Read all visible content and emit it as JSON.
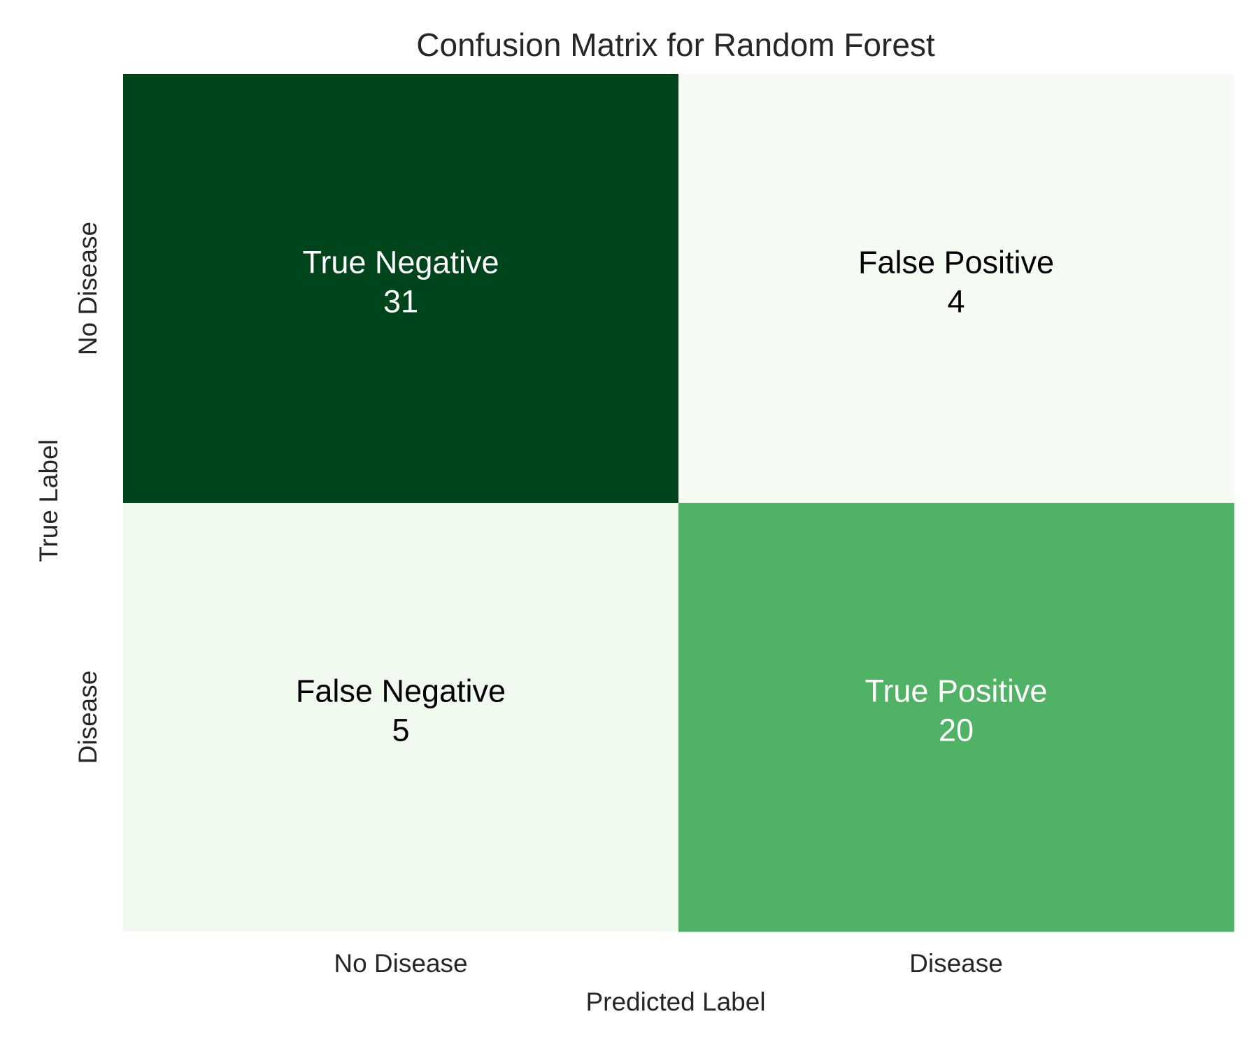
{
  "chart_data": {
    "type": "heatmap",
    "title": "Confusion Matrix for Random Forest",
    "xlabel": "Predicted Label",
    "ylabel": "True Label",
    "x_categories": [
      "No Disease",
      "Disease"
    ],
    "y_categories": [
      "No Disease",
      "Disease"
    ],
    "cells": [
      {
        "row": 0,
        "col": 0,
        "name": "True Negative",
        "value": 31,
        "color": "#00441b",
        "text_color": "#ffffff"
      },
      {
        "row": 0,
        "col": 1,
        "name": "False Positive",
        "value": 4,
        "color": "#f5fbf3",
        "text_color": "#000000"
      },
      {
        "row": 1,
        "col": 0,
        "name": "False Negative",
        "value": 5,
        "color": "#f0f9ed",
        "text_color": "#000000"
      },
      {
        "row": 1,
        "col": 1,
        "name": "True Positive",
        "value": 20,
        "color": "#4fb264",
        "text_color": "#ffffff"
      }
    ],
    "colormap": "Greens",
    "colorbar": false,
    "grid": false
  }
}
